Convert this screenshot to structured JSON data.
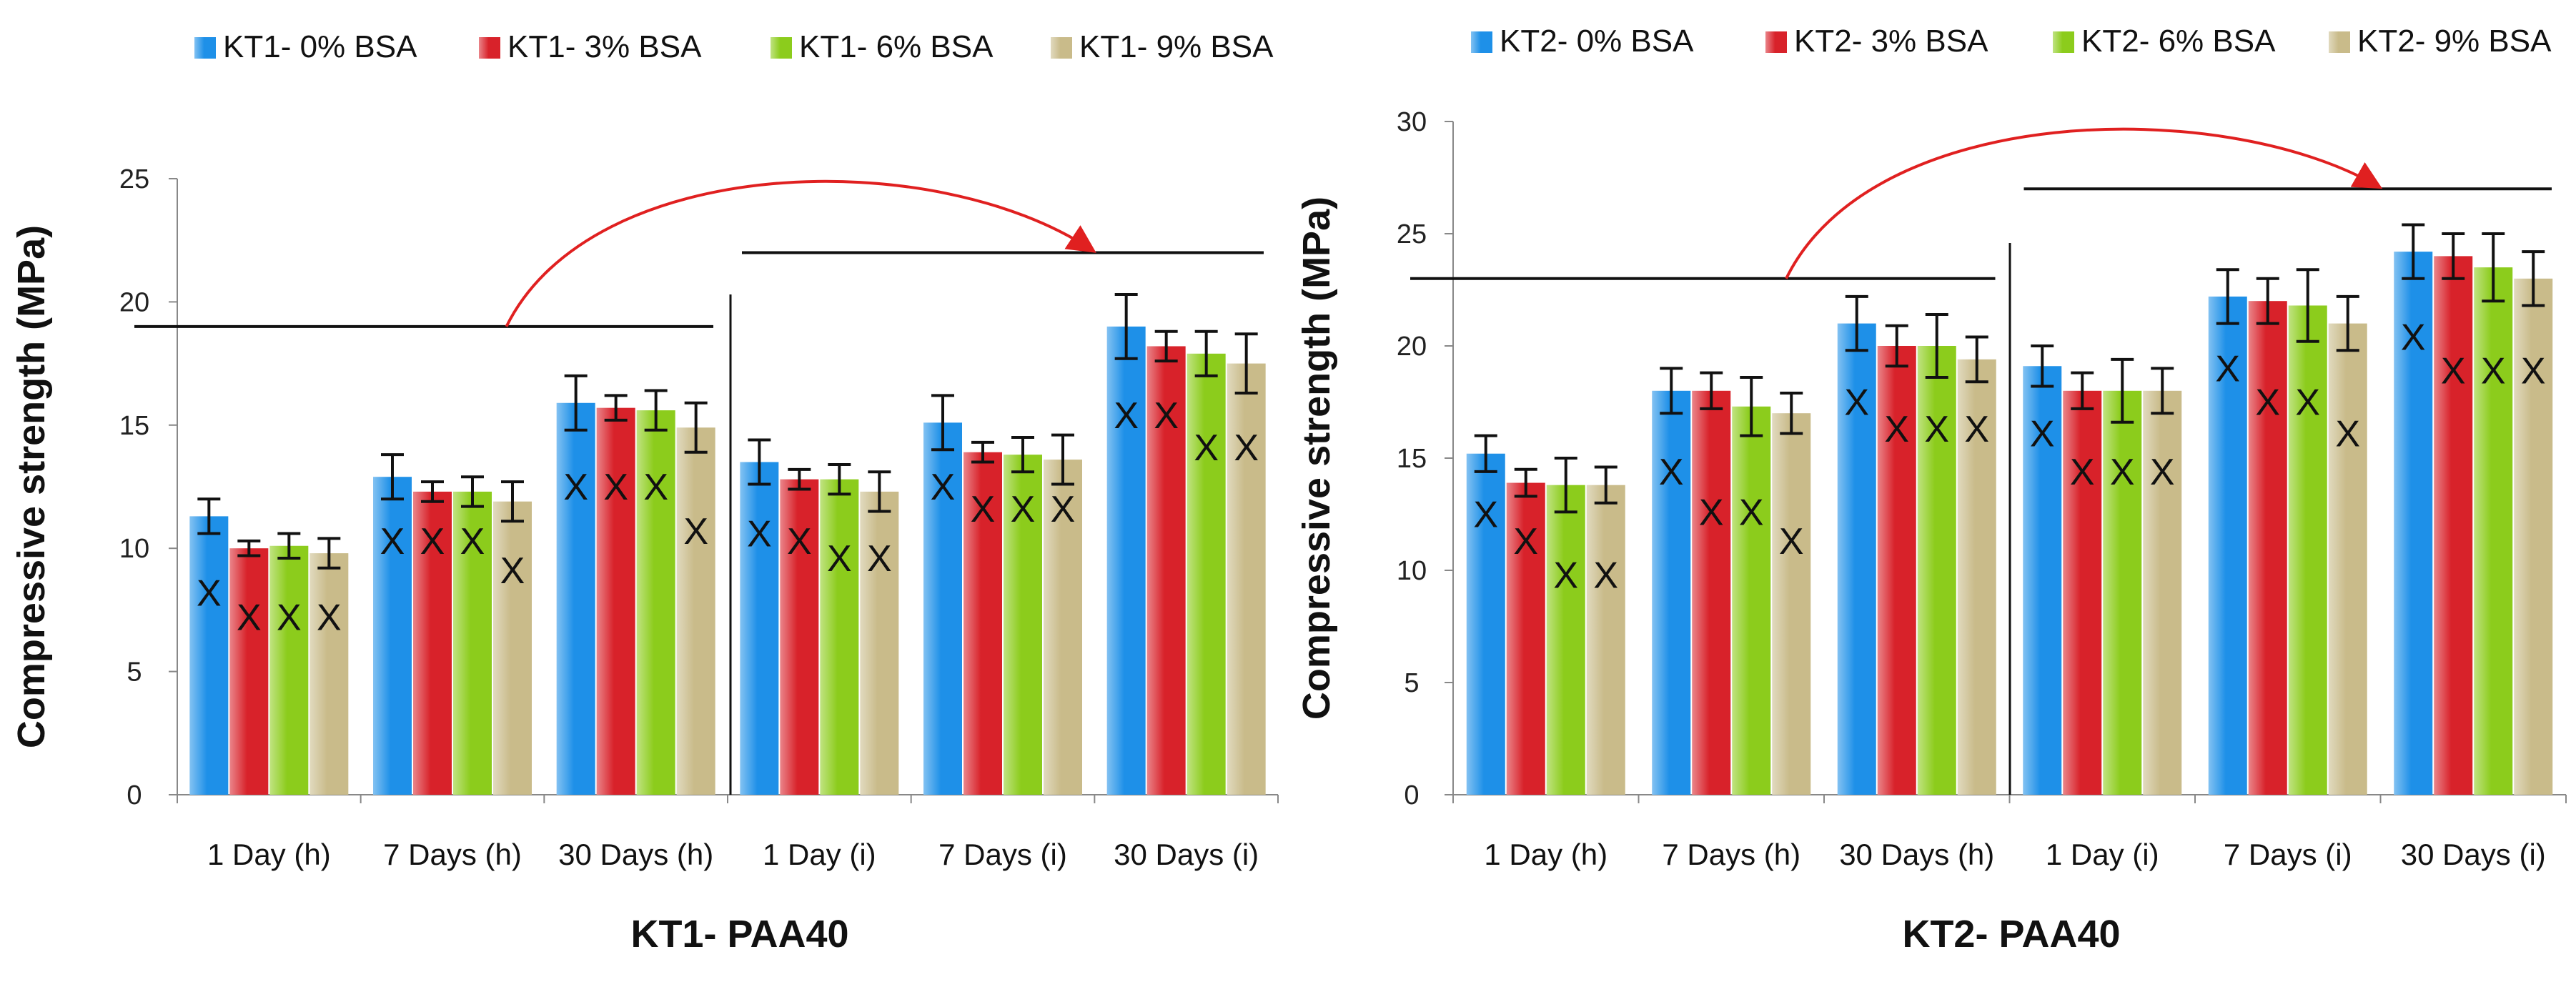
{
  "chart_data": [
    {
      "type": "bar",
      "title": "KT1- PAA40",
      "xlabel": "KT1- PAA40",
      "ylabel": "Compressive strength (MPa)",
      "ylim": [
        0,
        25
      ],
      "yticks": [
        0,
        5,
        10,
        15,
        20,
        25
      ],
      "grid": false,
      "legend_position": "top",
      "categories": [
        "1 Day (h)",
        "7 Days (h)",
        "30 Days (h)",
        "1 Day (i)",
        "7 Days (i)",
        "30 Days (i)"
      ],
      "series": [
        {
          "name": "KT1- 0% BSA",
          "color": "#1e90e8",
          "values": [
            11.3,
            12.9,
            15.9,
            13.5,
            15.1,
            19.0
          ],
          "errors": [
            0.7,
            0.9,
            1.1,
            0.9,
            1.1,
            1.3
          ]
        },
        {
          "name": "KT1- 3% BSA",
          "color": "#d8222a",
          "values": [
            10.0,
            12.3,
            15.7,
            12.8,
            13.9,
            18.2
          ],
          "errors": [
            0.3,
            0.4,
            0.5,
            0.4,
            0.4,
            0.6
          ]
        },
        {
          "name": "KT1- 6% BSA",
          "color": "#8ccc1c",
          "values": [
            10.1,
            12.3,
            15.6,
            12.8,
            13.8,
            17.9
          ],
          "errors": [
            0.5,
            0.6,
            0.8,
            0.6,
            0.7,
            0.9
          ]
        },
        {
          "name": "KT1- 9% BSA",
          "color": "#c9bb8a",
          "values": [
            9.8,
            11.9,
            14.9,
            12.3,
            13.6,
            17.5
          ],
          "errors": [
            0.6,
            0.8,
            1.0,
            0.8,
            1.0,
            1.2
          ]
        }
      ],
      "annotation_marks": [
        [
          "X",
          "X",
          "X",
          "X"
        ],
        [
          "X",
          "X",
          "X",
          "X"
        ],
        [
          "X",
          "X",
          "X",
          "X"
        ],
        [
          "X",
          "X",
          "X",
          "X"
        ],
        [
          "X",
          "X",
          "X",
          "X"
        ],
        [
          "X",
          "X",
          "X",
          "X"
        ]
      ],
      "mark_values": [
        [
          8.2,
          7.2,
          7.2,
          7.2
        ],
        [
          10.3,
          10.3,
          10.3,
          9.1
        ],
        [
          12.5,
          12.5,
          12.5,
          10.7
        ],
        [
          10.6,
          10.3,
          9.6,
          9.6
        ],
        [
          12.5,
          11.6,
          11.6,
          11.6
        ],
        [
          15.4,
          15.4,
          14.1,
          14.1
        ]
      ],
      "annotation_lines": [
        {
          "from_category": 0,
          "to_category": 2,
          "y": 19.0
        },
        {
          "from_category": 3,
          "to_category": 5,
          "y": 22.0
        }
      ],
      "arrow": {
        "from": "first group line",
        "to": "second group line"
      }
    },
    {
      "type": "bar",
      "title": "KT2- PAA40",
      "xlabel": "KT2- PAA40",
      "ylabel": "Compressive strength (MPa)",
      "ylim": [
        0,
        30
      ],
      "yticks": [
        0,
        5,
        10,
        15,
        20,
        25,
        30
      ],
      "grid": false,
      "legend_position": "top",
      "categories": [
        "1 Day (h)",
        "7 Days (h)",
        "30 Days (h)",
        "1 Day (i)",
        "7 Days (i)",
        "30 Days (i)"
      ],
      "series": [
        {
          "name": "KT2- 0% BSA",
          "color": "#1e90e8",
          "values": [
            15.2,
            18.0,
            21.0,
            19.1,
            22.2,
            24.2
          ],
          "errors": [
            0.8,
            1.0,
            1.2,
            0.9,
            1.2,
            1.2
          ]
        },
        {
          "name": "KT2- 3% BSA",
          "color": "#d8222a",
          "values": [
            13.9,
            18.0,
            20.0,
            18.0,
            22.0,
            24.0
          ],
          "errors": [
            0.6,
            0.8,
            0.9,
            0.8,
            1.0,
            1.0
          ]
        },
        {
          "name": "KT2- 6% BSA",
          "color": "#8ccc1c",
          "values": [
            13.8,
            17.3,
            20.0,
            18.0,
            21.8,
            23.5
          ],
          "errors": [
            1.2,
            1.3,
            1.4,
            1.4,
            1.6,
            1.5
          ]
        },
        {
          "name": "KT2- 9% BSA",
          "color": "#c9bb8a",
          "values": [
            13.8,
            17.0,
            19.4,
            18.0,
            21.0,
            23.0
          ],
          "errors": [
            0.8,
            0.9,
            1.0,
            1.0,
            1.2,
            1.2
          ]
        }
      ],
      "annotation_marks": [
        [
          "X",
          "X",
          "X",
          "X"
        ],
        [
          "X",
          "X",
          "X",
          "X"
        ],
        [
          "X",
          "X",
          "X",
          "X"
        ],
        [
          "X",
          "X",
          "X",
          "X"
        ],
        [
          "X",
          "X",
          "X",
          "X"
        ],
        [
          "X",
          "X",
          "X",
          "X"
        ]
      ],
      "mark_values": [
        [
          12.5,
          11.3,
          9.8,
          9.8
        ],
        [
          14.4,
          12.6,
          12.6,
          11.3
        ],
        [
          17.5,
          16.3,
          16.3,
          16.3
        ],
        [
          16.1,
          14.4,
          14.4,
          14.4
        ],
        [
          19.0,
          17.5,
          17.5,
          16.1
        ],
        [
          20.4,
          18.9,
          18.9,
          18.9
        ]
      ],
      "annotation_lines": [
        {
          "from_category": 0,
          "to_category": 2,
          "y": 23.0
        },
        {
          "from_category": 3,
          "to_category": 5,
          "y": 27.0
        }
      ],
      "arrow": {
        "from": "first group line",
        "to": "second group line"
      }
    }
  ]
}
